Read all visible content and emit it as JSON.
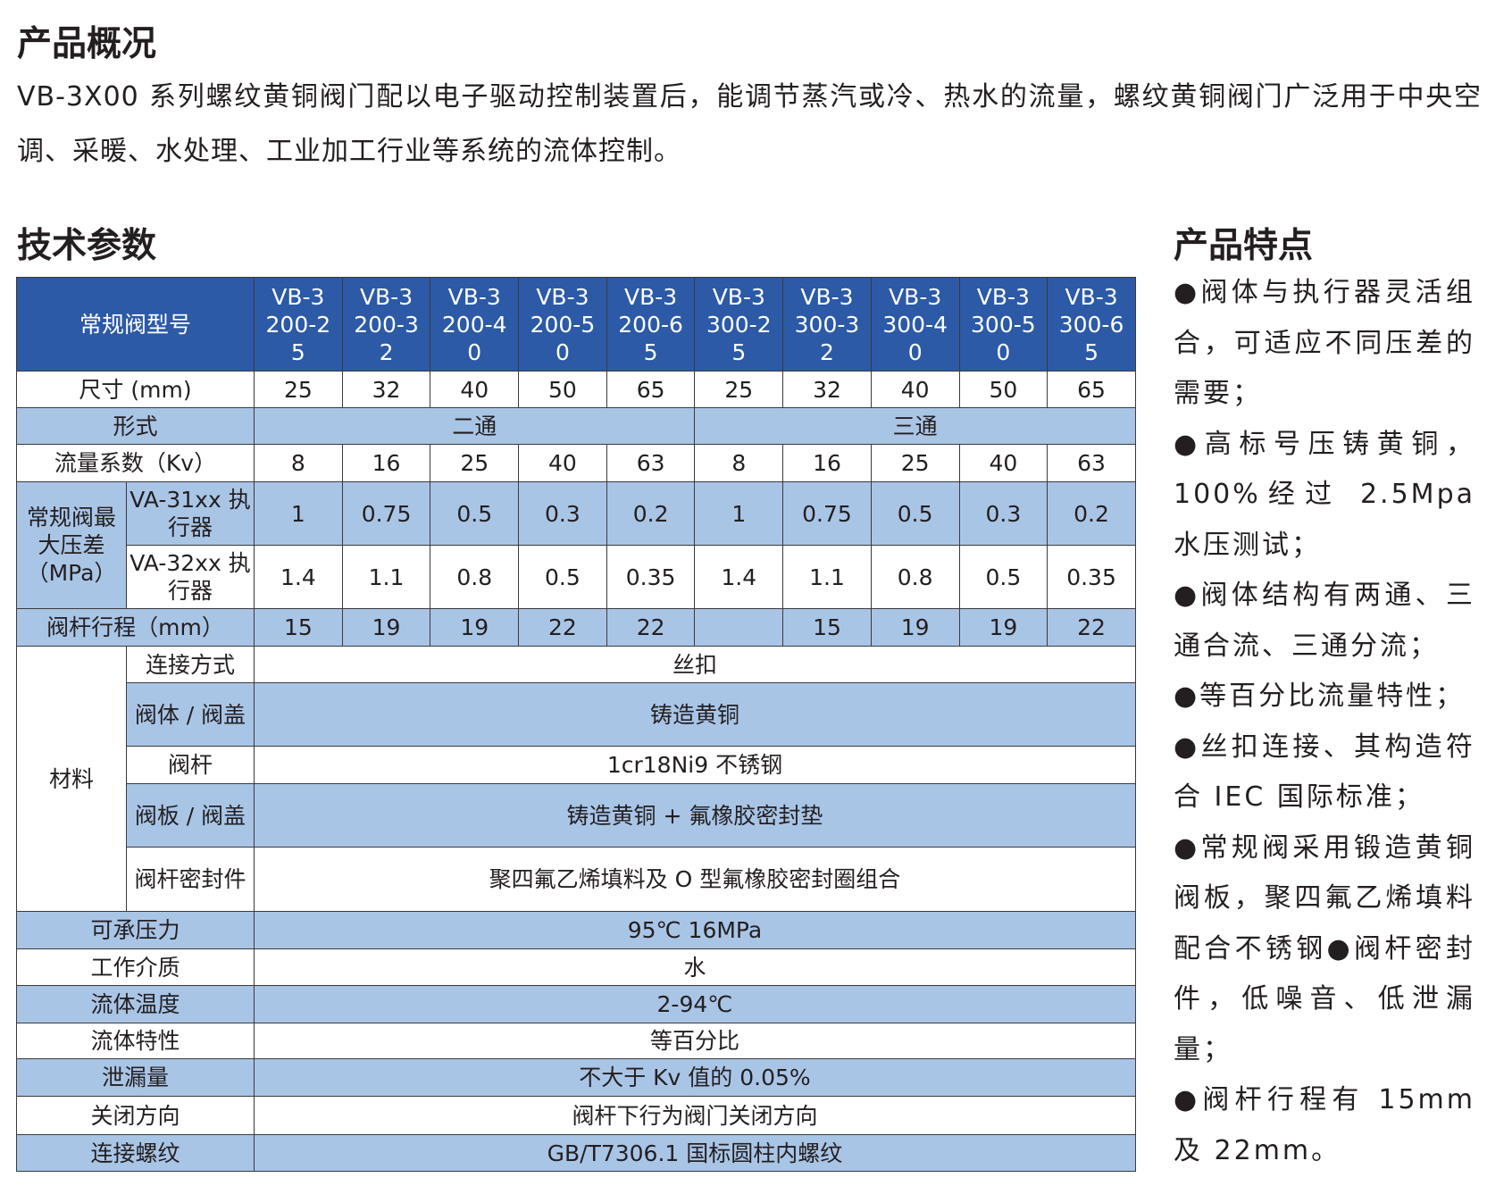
{
  "overview": {
    "title": "产品概况",
    "text": "VB-3X00 系列螺纹黄铜阀门配以电子驱动控制装置后，能调节蒸汽或冷、热水的流量，螺纹黄铜阀门广泛用于中央空调、采暖、水处理、工业加工行业等系统的流体控制。"
  },
  "specs": {
    "title": "技术参数",
    "table": {
      "header_label": "常规阀型号",
      "models": [
        "VB-3200-25",
        "VB-3200-32",
        "VB-3200-40",
        "VB-3200-50",
        "VB-3200-65",
        "VB-3300-25",
        "VB-3300-32",
        "VB-3300-40",
        "VB-3300-50",
        "VB-3300-65"
      ],
      "size": {
        "label": "尺寸 (mm)",
        "values": [
          25,
          32,
          40,
          50,
          65,
          25,
          32,
          40,
          50,
          65
        ]
      },
      "form": {
        "label": "形式",
        "groups": [
          "二通",
          "三通"
        ]
      },
      "kv": {
        "label": "流量系数（Kv）",
        "values": [
          8,
          16,
          25,
          40,
          63,
          8,
          16,
          25,
          40,
          63
        ]
      },
      "pressure": {
        "label": "常规阀最大压差（MPa）",
        "actuators": [
          {
            "name": "VA-31xx 执行器",
            "values": [
              1,
              0.75,
              0.5,
              0.3,
              0.2,
              1,
              0.75,
              0.5,
              0.3,
              0.2
            ]
          },
          {
            "name": "VA-32xx 执行器",
            "values": [
              1.4,
              1.1,
              0.8,
              0.5,
              0.35,
              1.4,
              1.1,
              0.8,
              0.5,
              0.35
            ]
          }
        ]
      },
      "stroke": {
        "label": "阀杆行程（mm）",
        "values": [
          15,
          19,
          19,
          22,
          22,
          null,
          15,
          19,
          19,
          22
        ]
      },
      "material": {
        "label": "材料",
        "items": [
          {
            "part": "连接方式",
            "spec": "丝扣"
          },
          {
            "part": "阀体 / 阀盖",
            "spec": "铸造黄铜"
          },
          {
            "part": "阀杆",
            "spec": "1cr18Ni9 不锈钢"
          },
          {
            "part": "阀板 / 阀盖",
            "spec": "铸造黄铜 + 氟橡胶密封垫"
          },
          {
            "part": "阀杆密封件",
            "spec": "聚四氟乙烯填料及 O 型氟橡胶密封圈组合"
          }
        ]
      },
      "rows": [
        {
          "label": "可承压力",
          "value": "95℃ 16MPa"
        },
        {
          "label": "工作介质",
          "value": "水"
        },
        {
          "label": "流体温度",
          "value": "2-94℃"
        },
        {
          "label": "流体特性",
          "value": "等百分比"
        },
        {
          "label": "泄漏量",
          "value": "不大于 Kv 值的 0.05%"
        },
        {
          "label": "关闭方向",
          "value": "阀杆下行为阀门关闭方向"
        },
        {
          "label": "连接螺纹",
          "value": "GB/T7306.1 国标圆柱内螺纹"
        }
      ]
    }
  },
  "features": {
    "title": "产品特点",
    "items": [
      "●阀体与执行器灵活组合，可适应不同压差的需要；",
      "●高标号压铸黄铜，100%经过 2.5Mpa 水压测试；",
      "●阀体结构有两通、三通合流、三通分流；",
      "●等百分比流量特性；",
      "●丝扣连接、其构造符合 IEC 国际标准；",
      "●常规阀采用锻造黄铜阀板，聚四氟乙烯填料配合不锈钢●阀杆密封件，低噪音、低泄漏量；",
      "●阀杆行程有 15mm 及 22mm。"
    ]
  }
}
